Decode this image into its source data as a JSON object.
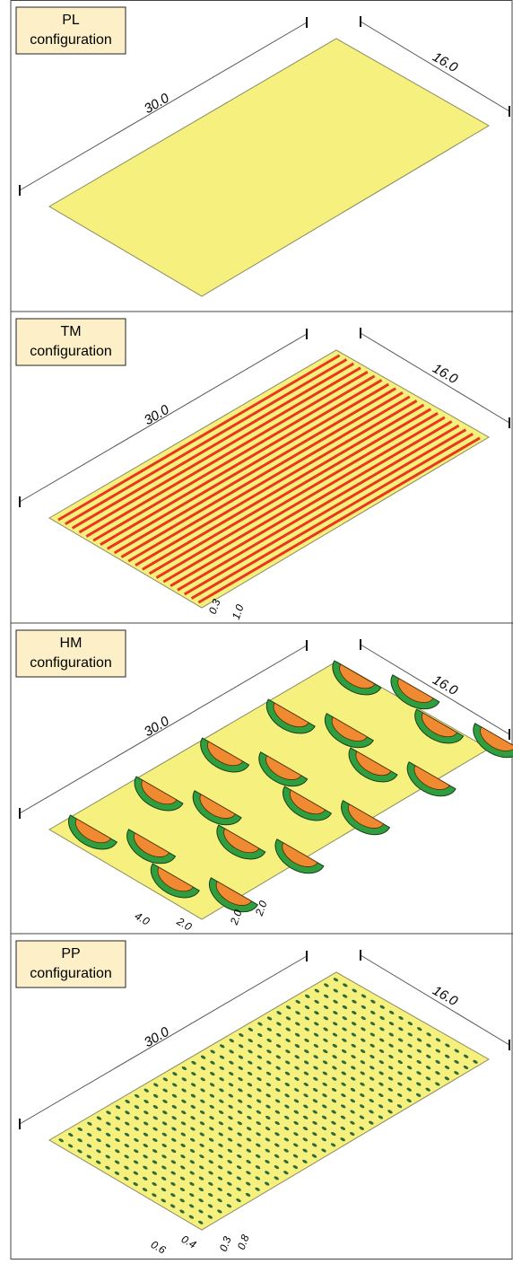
{
  "panels": [
    {
      "label": [
        "PL",
        "configuration"
      ],
      "length": "30.0",
      "width": "16.0",
      "details": []
    },
    {
      "label": [
        "TM",
        "configuration"
      ],
      "length": "30.0",
      "width": "16.0",
      "details": [
        "0.3",
        "1.0"
      ]
    },
    {
      "label": [
        "HM",
        "configuration"
      ],
      "length": "30.0",
      "width": "16.0",
      "details": [
        "4.0",
        "2.0",
        "2.0",
        "2.0"
      ]
    },
    {
      "label": [
        "PP",
        "configuration"
      ],
      "length": "30.0",
      "width": "16.0",
      "details": [
        "0.6",
        "0.4",
        "0.3",
        "0.8"
      ]
    }
  ]
}
